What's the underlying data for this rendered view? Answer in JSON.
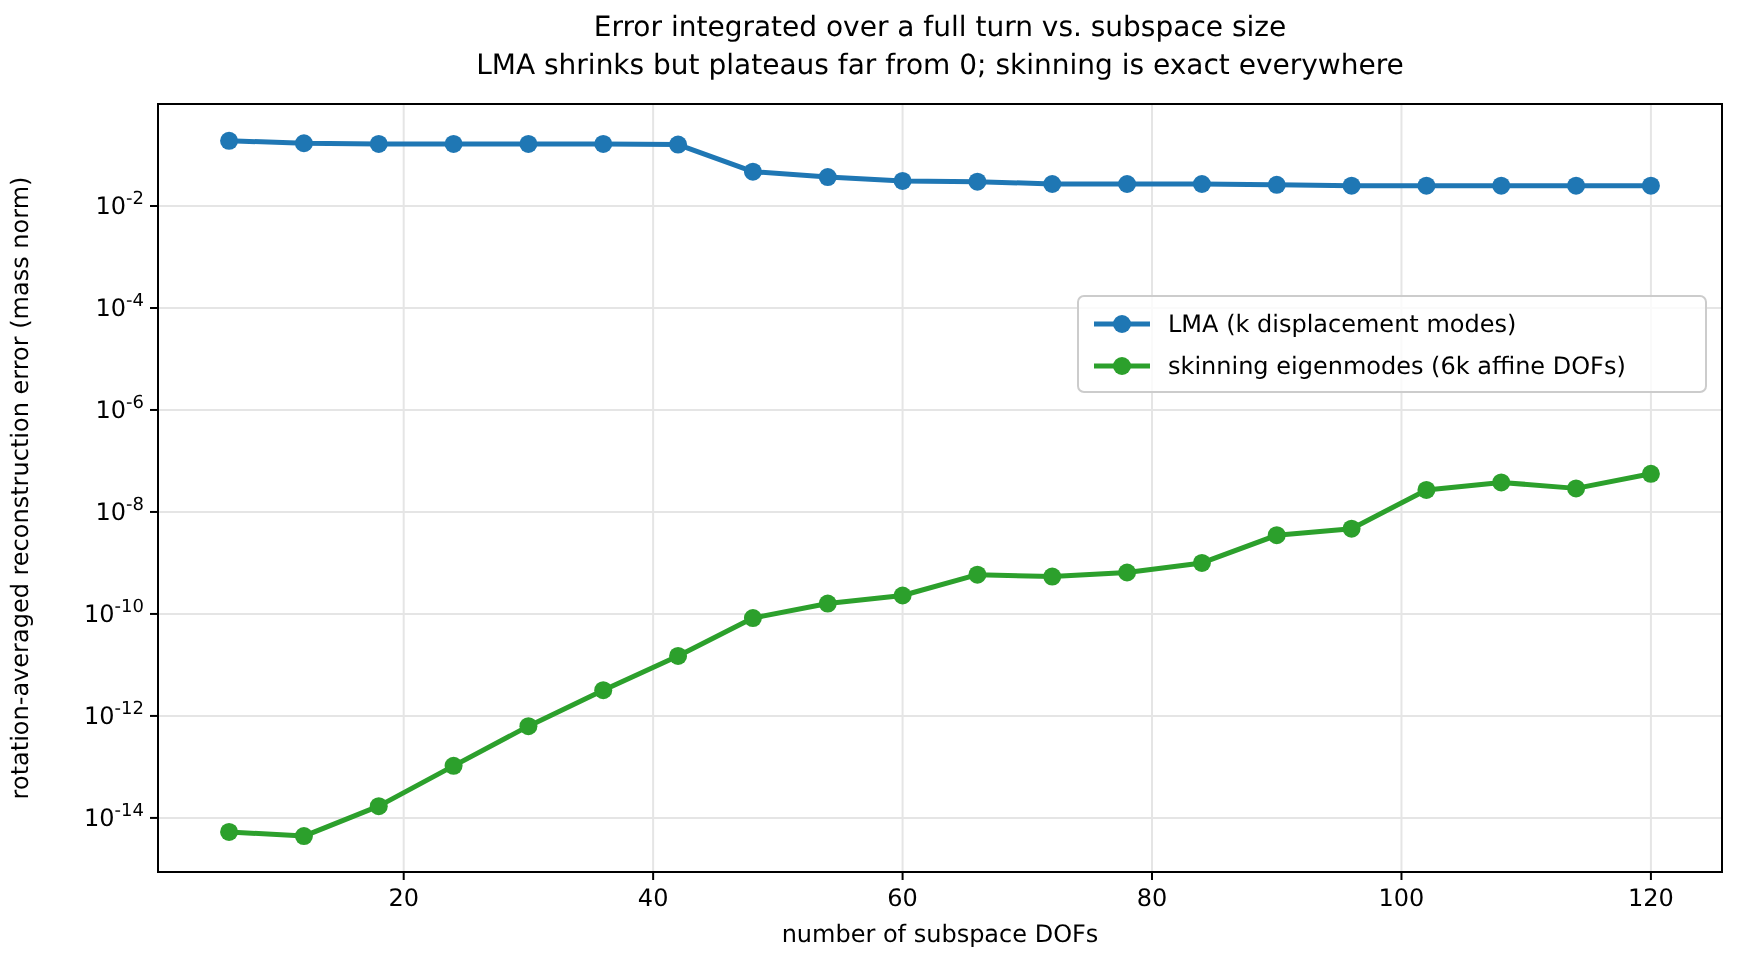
{
  "chart_data": {
    "type": "line",
    "title": "Error integrated over a full turn vs. subspace size\nLMA shrinks but plateaus far from 0; skinning is exact everywhere",
    "xlabel": "number of subspace DOFs",
    "ylabel": "rotation-averaged reconstruction error  (mass norm)",
    "x": [
      6,
      12,
      18,
      24,
      30,
      36,
      42,
      48,
      54,
      60,
      66,
      72,
      78,
      84,
      90,
      96,
      102,
      108,
      114,
      120
    ],
    "series": [
      {
        "name": "LMA  (k displacement modes)",
        "color": "#1f77b4",
        "values": [
          0.19,
          0.17,
          0.165,
          0.165,
          0.165,
          0.165,
          0.16,
          0.047,
          0.037,
          0.031,
          0.03,
          0.027,
          0.027,
          0.027,
          0.026,
          0.025,
          0.025,
          0.025,
          0.025,
          0.025
        ]
      },
      {
        "name": "skinning eigenmodes  (6k affine DOFs)",
        "color": "#2ca02c",
        "values": [
          5.3e-15,
          4.4e-15,
          1.7e-14,
          1.05e-13,
          6.3e-13,
          3.2e-12,
          1.5e-11,
          8.3e-11,
          1.6e-10,
          2.3e-10,
          5.9e-10,
          5.4e-10,
          6.5e-10,
          1e-09,
          3.5e-09,
          4.7e-09,
          2.7e-08,
          3.8e-08,
          2.9e-08,
          5.6e-08
        ]
      }
    ],
    "xlim": [
      0.3,
      125.7
    ],
    "xticks": [
      20,
      40,
      60,
      80,
      100,
      120
    ],
    "ylim": [
      8.7e-16,
      1
    ],
    "yticks": [
      {
        "value": 1e-14,
        "label": "10$^{-14}$"
      },
      {
        "value": 1e-12,
        "label": "10$^{-12}$"
      },
      {
        "value": 1e-10,
        "label": "10$^{-10}$"
      },
      {
        "value": 1e-08,
        "label": "10$^{-8}$"
      },
      {
        "value": 1e-06,
        "label": "10$^{-6}$"
      },
      {
        "value": 0.0001,
        "label": "10$^{-4}$"
      },
      {
        "value": 0.01,
        "label": "10$^{-2}$"
      }
    ],
    "log": true,
    "grid": true,
    "legend": "right",
    "marker": "circle",
    "line_style": "solid"
  }
}
